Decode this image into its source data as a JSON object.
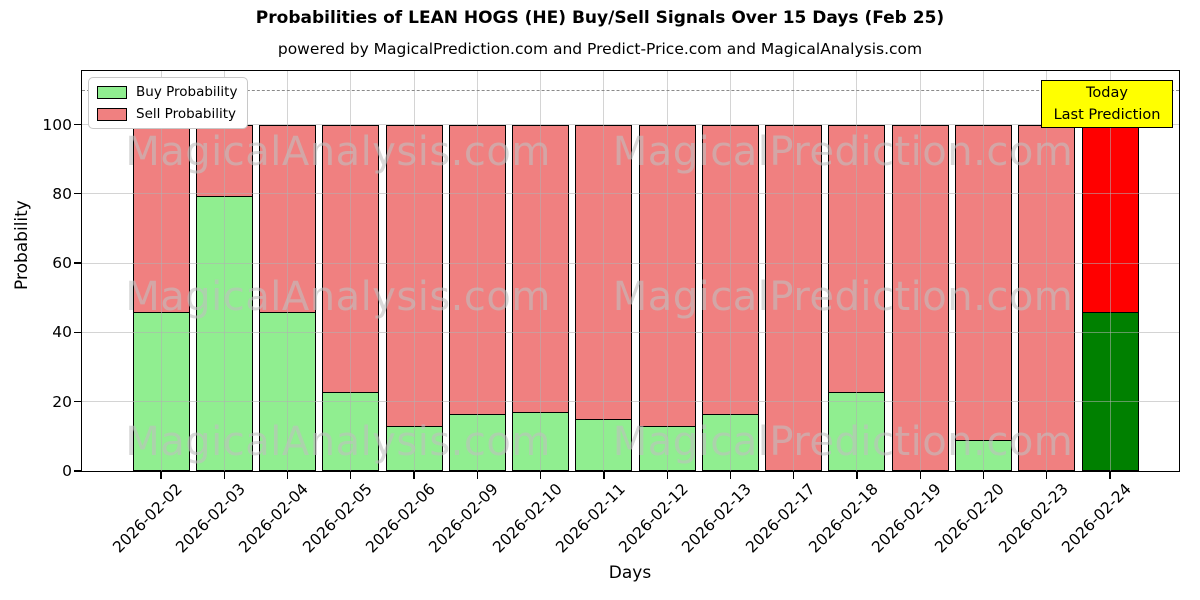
{
  "title": "Probabilities of LEAN HOGS (HE) Buy/Sell Signals Over 15 Days (Feb 25)",
  "subtitle": "powered by MagicalPrediction.com and Predict-Price.com and MagicalAnalysis.com",
  "legend": {
    "items": [
      {
        "label": "Buy Probability",
        "color": "#90EE90"
      },
      {
        "label": "Sell Probability",
        "color": "#F08080"
      }
    ]
  },
  "annotation_box": {
    "line1": "Today",
    "line2": "Last Prediction",
    "bg_color": "#FFFF00"
  },
  "watermarks": {
    "left": "MagicalAnalysis.com",
    "right": "MagicalPrediction.com"
  },
  "axes": {
    "xlabel": "Days",
    "ylabel": "Probability",
    "yticks": [
      0,
      20,
      40,
      60,
      80,
      100
    ]
  },
  "chart_data": {
    "type": "bar",
    "stacked": true,
    "title": "Probabilities of LEAN HOGS (HE) Buy/Sell Signals Over 15 Days (Feb 25)",
    "xlabel": "Days",
    "ylabel": "Probability",
    "ylim": [
      0,
      115
    ],
    "grid": true,
    "legend_position": "upper left",
    "dashed_line_y": 110,
    "categories": [
      "2026-02-02",
      "2026-02-03",
      "2026-02-04",
      "2026-02-05",
      "2026-02-06",
      "2026-02-09",
      "2026-02-10",
      "2026-02-11",
      "2026-02-12",
      "2026-02-13",
      "2026-02-17",
      "2026-02-18",
      "2026-02-19",
      "2026-02-20",
      "2026-02-23",
      "2026-02-24"
    ],
    "series": [
      {
        "name": "Buy Probability",
        "color": "#90EE90",
        "values": [
          46,
          79.5,
          46,
          23,
          13,
          16.5,
          17,
          15,
          13,
          16.5,
          0,
          23,
          0,
          9,
          0,
          46
        ]
      },
      {
        "name": "Sell Probability",
        "color": "#F08080",
        "values": [
          54,
          20.5,
          54,
          77,
          87,
          83.5,
          83,
          85,
          87,
          83.5,
          100,
          77,
          100,
          91,
          100,
          54
        ]
      }
    ],
    "highlight": {
      "index": 15,
      "buy_color": "#008000",
      "sell_color": "#FF0000",
      "note": "Today / Last Prediction"
    },
    "bar_edge_color": "#000000"
  }
}
